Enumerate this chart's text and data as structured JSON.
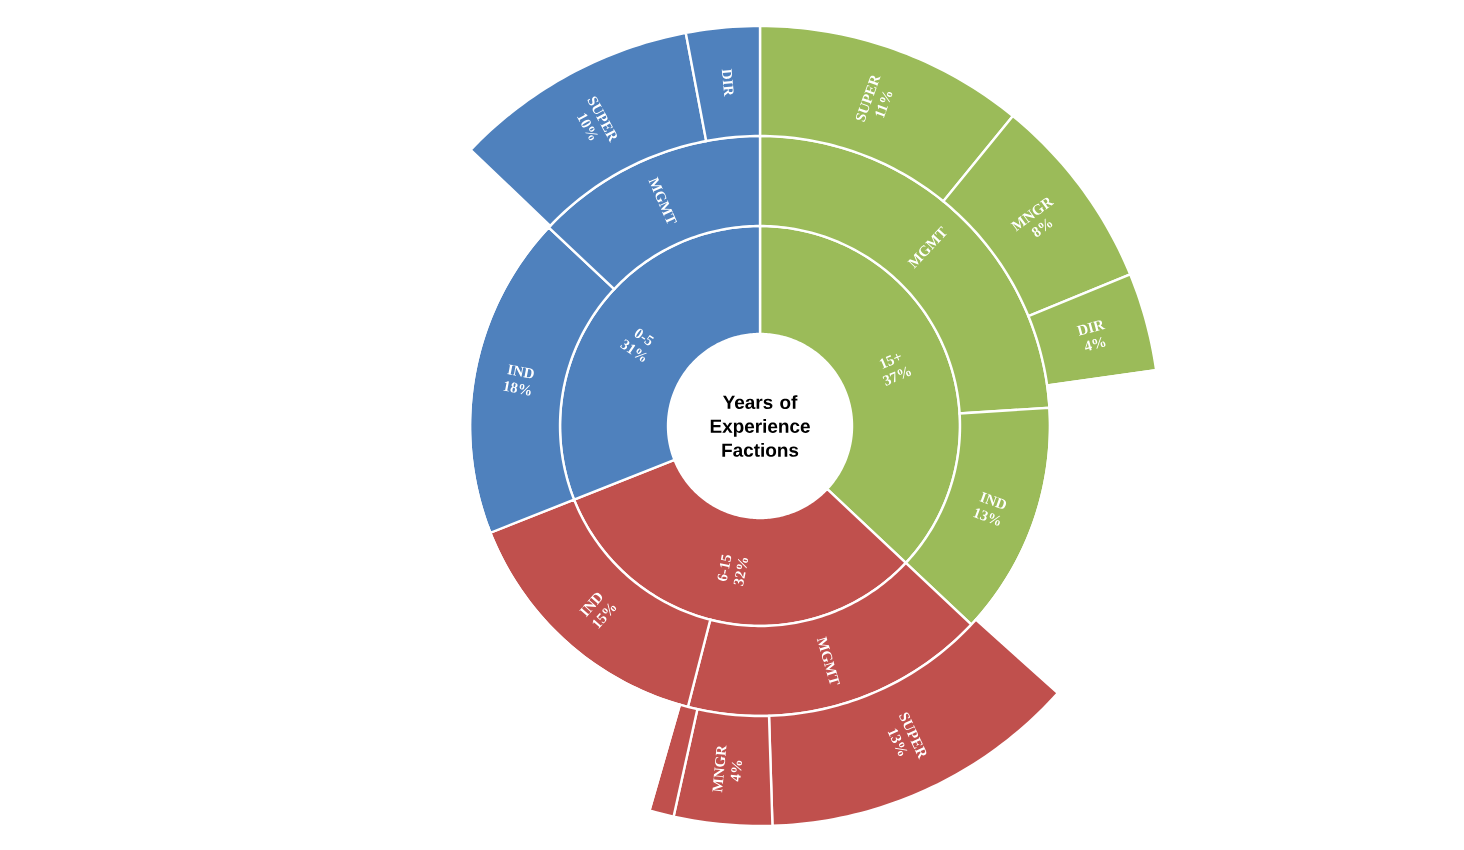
{
  "chart_data": [
    {
      "type": "donut",
      "title": "Years of Experience Factions",
      "categories": [
        "15+",
        "6-15",
        "0-5"
      ],
      "values": [
        37,
        32,
        31
      ],
      "value_labels": [
        "37%",
        "32%",
        "31%"
      ],
      "colors": [
        "#9bbb59",
        "#c0504d",
        "#4f81bd"
      ]
    },
    {
      "type": "donut",
      "categories": [
        "MGMT",
        "IND",
        "MGMT",
        "IND",
        "IND",
        "MGMT"
      ],
      "values": [
        24,
        13,
        17,
        15,
        18,
        13
      ],
      "value_labels": [
        null,
        "13%",
        null,
        "15%",
        "18%",
        null
      ],
      "colors": [
        "#9bbb59",
        "#9bbb59",
        "#c0504d",
        "#c0504d",
        "#4f81bd",
        "#4f81bd"
      ]
    },
    {
      "type": "donut",
      "categories": [
        "SUPER",
        "MNGR",
        "DIR",
        null,
        "SUPER",
        "MNGR",
        null,
        null,
        null,
        "SUPER",
        "DIR"
      ],
      "values": [
        11,
        8,
        4,
        14,
        13,
        4,
        1,
        15,
        18,
        10,
        3
      ],
      "value_labels": [
        "11%",
        "8%",
        "4%",
        null,
        "13%",
        "4%",
        null,
        null,
        null,
        "10%",
        null
      ],
      "colors": [
        "#9bbb59",
        "#9bbb59",
        "#9bbb59",
        "#ffffff",
        "#c0504d",
        "#c0504d",
        "#c0504d",
        "#ffffff",
        "#ffffff",
        "#4f81bd",
        "#4f81bd"
      ]
    }
  ]
}
